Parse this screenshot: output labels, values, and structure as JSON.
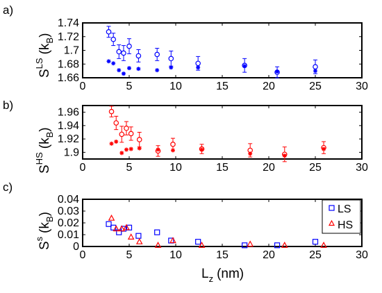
{
  "panels": [
    {
      "label": "a)",
      "ylabel": {
        "base": "S",
        "sup": "LS",
        "unit_open": "(k",
        "unit_sub": "B",
        "unit_close": ")"
      },
      "yticks": [
        "1.74",
        "1.72",
        "1.7",
        "1.68",
        "1.66"
      ],
      "xticks": [
        "0",
        "5",
        "10",
        "15",
        "20",
        "25",
        "30"
      ]
    },
    {
      "label": "b)",
      "ylabel": {
        "base": "S",
        "sup": "HS",
        "unit_open": "(k",
        "unit_sub": "B",
        "unit_close": ")"
      },
      "yticks": [
        "1.96",
        "1.94",
        "1.92",
        "1.9"
      ],
      "xticks": [
        "0",
        "5",
        "10",
        "15",
        "20",
        "25",
        "30"
      ]
    },
    {
      "label": "c)",
      "ylabel": {
        "base": "S",
        "sup": "s",
        "unit_open": "(k",
        "unit_sub": "B",
        "unit_close": ")"
      },
      "yticks": [
        "0.04",
        "0.03",
        "0.02",
        "0.01",
        "0"
      ],
      "xticks": [
        "0",
        "5",
        "10",
        "15",
        "20",
        "25",
        "30"
      ]
    }
  ],
  "xlabel": {
    "base": "L",
    "sub": "z",
    "unit": "(nm)"
  },
  "legend": [
    {
      "label": "LS",
      "marker": "square",
      "color": "#0000ff"
    },
    {
      "label": "HS",
      "marker": "triangle",
      "color": "#ff0000"
    }
  ],
  "chart_data": [
    {
      "type": "scatter",
      "xlim": [
        0,
        30
      ],
      "ylim": [
        1.66,
        1.74
      ],
      "color": "#0000ff",
      "series": [
        {
          "marker": "circle-errorbar",
          "x": [
            2.8,
            3.3,
            3.9,
            4.4,
            5.0,
            6.0,
            8.0,
            9.5,
            12.4,
            17.4,
            20.9,
            25.0
          ],
          "y": [
            1.727,
            1.716,
            1.698,
            1.696,
            1.706,
            1.692,
            1.694,
            1.688,
            1.681,
            1.678,
            1.668,
            1.676
          ],
          "err": [
            0.008,
            0.009,
            0.01,
            0.011,
            0.011,
            0.009,
            0.009,
            0.011,
            0.01,
            0.01,
            0.008,
            0.01
          ]
        },
        {
          "marker": "asterisk",
          "x": [
            2.8,
            3.3,
            3.9,
            4.4,
            5.0,
            6.0,
            8.0,
            9.5,
            12.4,
            17.4,
            20.9,
            25.0
          ],
          "y": [
            1.684,
            1.681,
            1.671,
            1.666,
            1.674,
            1.673,
            1.671,
            1.675,
            1.675,
            1.677,
            1.669,
            1.67
          ]
        }
      ]
    },
    {
      "type": "scatter",
      "xlim": [
        0,
        30
      ],
      "ylim": [
        1.89,
        1.97
      ],
      "color": "#ff0000",
      "series": [
        {
          "marker": "circle-errorbar",
          "x": [
            3.1,
            3.6,
            4.2,
            4.7,
            5.2,
            6.1,
            8.1,
            9.7,
            12.8,
            18.0,
            21.7,
            25.9
          ],
          "y": [
            1.961,
            1.944,
            1.927,
            1.936,
            1.928,
            1.919,
            1.902,
            1.912,
            1.905,
            1.903,
            1.897,
            1.907
          ],
          "err": [
            0.008,
            0.01,
            0.012,
            0.01,
            0.01,
            0.011,
            0.008,
            0.009,
            0.007,
            0.01,
            0.011,
            0.009
          ]
        },
        {
          "marker": "asterisk",
          "x": [
            3.1,
            3.6,
            4.2,
            4.7,
            5.2,
            6.1,
            8.1,
            9.7,
            12.8,
            18.0,
            21.7,
            25.9
          ],
          "y": [
            1.913,
            1.916,
            1.899,
            1.904,
            1.905,
            1.906,
            1.904,
            1.903,
            1.904,
            1.898,
            1.895,
            1.905
          ]
        }
      ]
    },
    {
      "type": "scatter",
      "xlim": [
        0,
        30
      ],
      "ylim": [
        0,
        0.04
      ],
      "series": [
        {
          "name": "LS",
          "marker": "square",
          "color": "#0000ff",
          "x": [
            2.8,
            3.3,
            3.9,
            4.4,
            5.0,
            6.0,
            8.0,
            9.5,
            12.4,
            17.4,
            20.9,
            25.0
          ],
          "y": [
            0.019,
            0.016,
            0.012,
            0.015,
            0.016,
            0.009,
            0.012,
            0.005,
            0.004,
            0.001,
            0.001,
            0.004
          ]
        },
        {
          "name": "HS",
          "marker": "triangle",
          "color": "#ff0000",
          "x": [
            3.1,
            3.6,
            4.2,
            4.7,
            5.2,
            6.1,
            8.1,
            9.7,
            12.8,
            18.0,
            21.7,
            25.9
          ],
          "y": [
            0.024,
            0.015,
            0.015,
            0.016,
            0.008,
            0.004,
            0.001,
            0.005,
            0.001,
            0.002,
            0.001,
            0.001
          ]
        }
      ]
    }
  ]
}
